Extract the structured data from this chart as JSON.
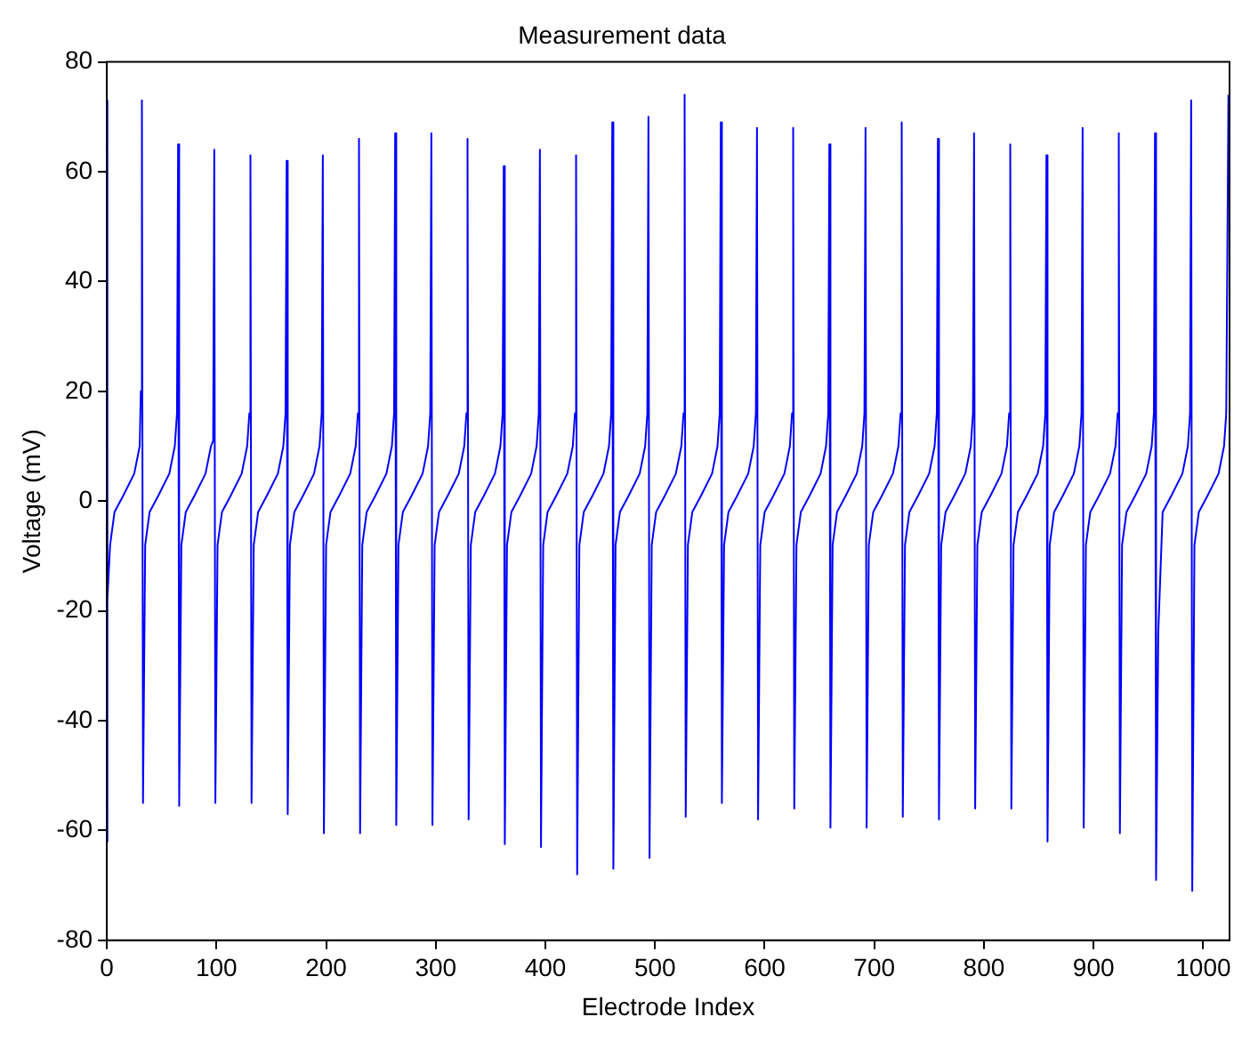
{
  "chart_data": {
    "type": "line",
    "title": "Measurement data",
    "xlabel": "Electrode Index",
    "ylabel": "Voltage (mV)",
    "x": [
      0,
      0,
      1,
      3,
      7,
      15,
      25,
      30,
      31,
      32,
      33,
      35,
      39,
      47,
      57,
      62,
      64,
      65,
      66,
      68,
      72,
      80,
      90,
      95,
      97,
      98,
      99,
      101,
      105,
      113,
      123,
      128,
      130,
      131,
      132,
      134,
      138,
      146,
      156,
      161,
      163,
      164,
      165,
      167,
      171,
      179,
      189,
      194,
      196,
      197,
      198,
      200,
      204,
      212,
      222,
      227,
      229,
      230,
      231,
      233,
      237,
      245,
      255,
      260,
      262,
      263,
      264,
      266,
      270,
      278,
      288,
      293,
      295,
      296,
      297,
      299,
      303,
      311,
      321,
      326,
      328,
      329,
      330,
      332,
      336,
      344,
      354,
      359,
      361,
      362,
      363,
      365,
      369,
      377,
      387,
      392,
      394,
      395,
      396,
      398,
      402,
      410,
      420,
      425,
      427,
      428,
      429,
      431,
      435,
      443,
      453,
      458,
      460,
      461,
      462,
      464,
      468,
      476,
      486,
      491,
      493,
      494,
      495,
      497,
      501,
      509,
      519,
      524,
      526,
      527,
      528,
      530,
      534,
      542,
      552,
      557,
      559,
      560,
      561,
      563,
      567,
      575,
      585,
      590,
      592,
      593,
      594,
      596,
      600,
      608,
      618,
      623,
      625,
      626,
      627,
      629,
      633,
      641,
      651,
      656,
      658,
      659,
      660,
      662,
      666,
      674,
      684,
      689,
      691,
      692,
      693,
      695,
      699,
      707,
      717,
      722,
      724,
      725,
      726,
      728,
      732,
      740,
      750,
      755,
      757,
      758,
      759,
      761,
      765,
      773,
      783,
      788,
      790,
      791,
      792,
      794,
      798,
      806,
      816,
      821,
      823,
      824,
      825,
      827,
      831,
      839,
      849,
      854,
      856,
      857,
      858,
      860,
      864,
      872,
      882,
      887,
      889,
      890,
      891,
      893,
      897,
      905,
      915,
      920,
      922,
      923,
      924,
      926,
      930,
      938,
      948,
      953,
      955,
      956,
      957,
      959,
      963,
      971,
      981,
      986,
      988,
      989,
      990,
      992,
      996,
      1004,
      1014,
      1019,
      1021,
      1023
    ],
    "series": [
      {
        "color": "#0000ff",
        "values": [
          73,
          -62,
          -18,
          -8,
          -2,
          1,
          5,
          10,
          20,
          73,
          -55,
          -8,
          -2,
          1,
          5,
          10,
          16,
          65,
          -55.5,
          -8,
          -2,
          1,
          5,
          10,
          11,
          64,
          -55,
          -8,
          -2,
          1,
          5,
          10,
          16,
          63,
          -55,
          -8,
          -2,
          1,
          5,
          10,
          16,
          62,
          -57,
          -8,
          -2,
          1,
          5,
          10,
          16,
          63,
          -60.5,
          -8,
          -2,
          1,
          5,
          10,
          16,
          66,
          -60.5,
          -8,
          -2,
          1,
          5,
          10,
          16,
          67,
          -59,
          -8,
          -2,
          1,
          5,
          10,
          16,
          67,
          -59,
          -8,
          -2,
          1,
          5,
          10,
          16,
          66,
          -58,
          -8,
          -2,
          1,
          5,
          10,
          16,
          61,
          -62.5,
          -8,
          -2,
          1,
          5,
          10,
          16,
          64,
          -63,
          -8,
          -2,
          1,
          5,
          10,
          16,
          63,
          -68,
          -8,
          -2,
          1,
          5,
          10,
          16,
          69,
          -67,
          -8,
          -2,
          1,
          5,
          10,
          16,
          70,
          -65,
          -8,
          -2,
          1,
          5,
          10,
          16,
          74,
          -57.5,
          -8,
          -2,
          1,
          5,
          10,
          16,
          69,
          -55,
          -8,
          -2,
          1,
          5,
          10,
          16,
          68,
          -58,
          -8,
          -2,
          1,
          5,
          10,
          16,
          68,
          -56,
          -8,
          -2,
          1,
          5,
          10,
          16,
          65,
          -59.5,
          -8,
          -2,
          1,
          5,
          10,
          16,
          68,
          -59.5,
          -8,
          -2,
          1,
          5,
          10,
          16,
          69,
          -57.5,
          -8,
          -2,
          1,
          5,
          10,
          16,
          66,
          -58,
          -8,
          -2,
          1,
          5,
          10,
          16,
          67,
          -56,
          -8,
          -2,
          1,
          5,
          10,
          16,
          65,
          -56,
          -8,
          -2,
          1,
          5,
          10,
          16,
          63,
          -62,
          -8,
          -2,
          1,
          5,
          10,
          16,
          68,
          -59.5,
          -8,
          -2,
          1,
          5,
          10,
          16,
          67,
          -60.5,
          -8,
          -2,
          1,
          5,
          10,
          16,
          67,
          -69,
          -24,
          -2,
          1,
          5,
          10,
          16,
          73,
          -71,
          -8,
          -2,
          1,
          5,
          10,
          16,
          74
        ]
      }
    ],
    "xlim": [
      0,
      1024
    ],
    "ylim": [
      -80,
      80
    ],
    "xticks": [
      0,
      100,
      200,
      300,
      400,
      500,
      600,
      700,
      800,
      900,
      1000
    ],
    "yticks": [
      -80,
      -60,
      -40,
      -20,
      0,
      20,
      40,
      60,
      80
    ],
    "marker": "none",
    "legend": false
  }
}
